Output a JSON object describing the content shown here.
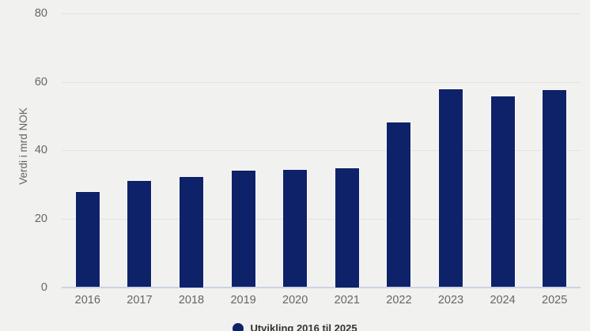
{
  "chart_data": {
    "type": "bar",
    "title": "",
    "ylabel": "Verdi i mrd NOK",
    "xlabel": "",
    "ylim": [
      0,
      80
    ],
    "yticks": [
      0,
      20,
      40,
      60,
      80
    ],
    "grid": true,
    "legend_position": "bottom-center",
    "categories": [
      "2016",
      "2017",
      "2018",
      "2019",
      "2020",
      "2021",
      "2022",
      "2023",
      "2024",
      "2025"
    ],
    "series": [
      {
        "name": "Utvikling 2016 til 2025",
        "values": [
          28,
          31.2,
          32.5,
          34.3,
          34.6,
          35,
          48.3,
          58,
          56,
          57.8
        ]
      }
    ]
  },
  "colors": {
    "bar": "#0e2269",
    "background": "#f1f1ef",
    "gridline": "#e2e2e0",
    "baseline": "#cbd3e9",
    "axis_text": "#666666",
    "legend_text": "#333333"
  }
}
